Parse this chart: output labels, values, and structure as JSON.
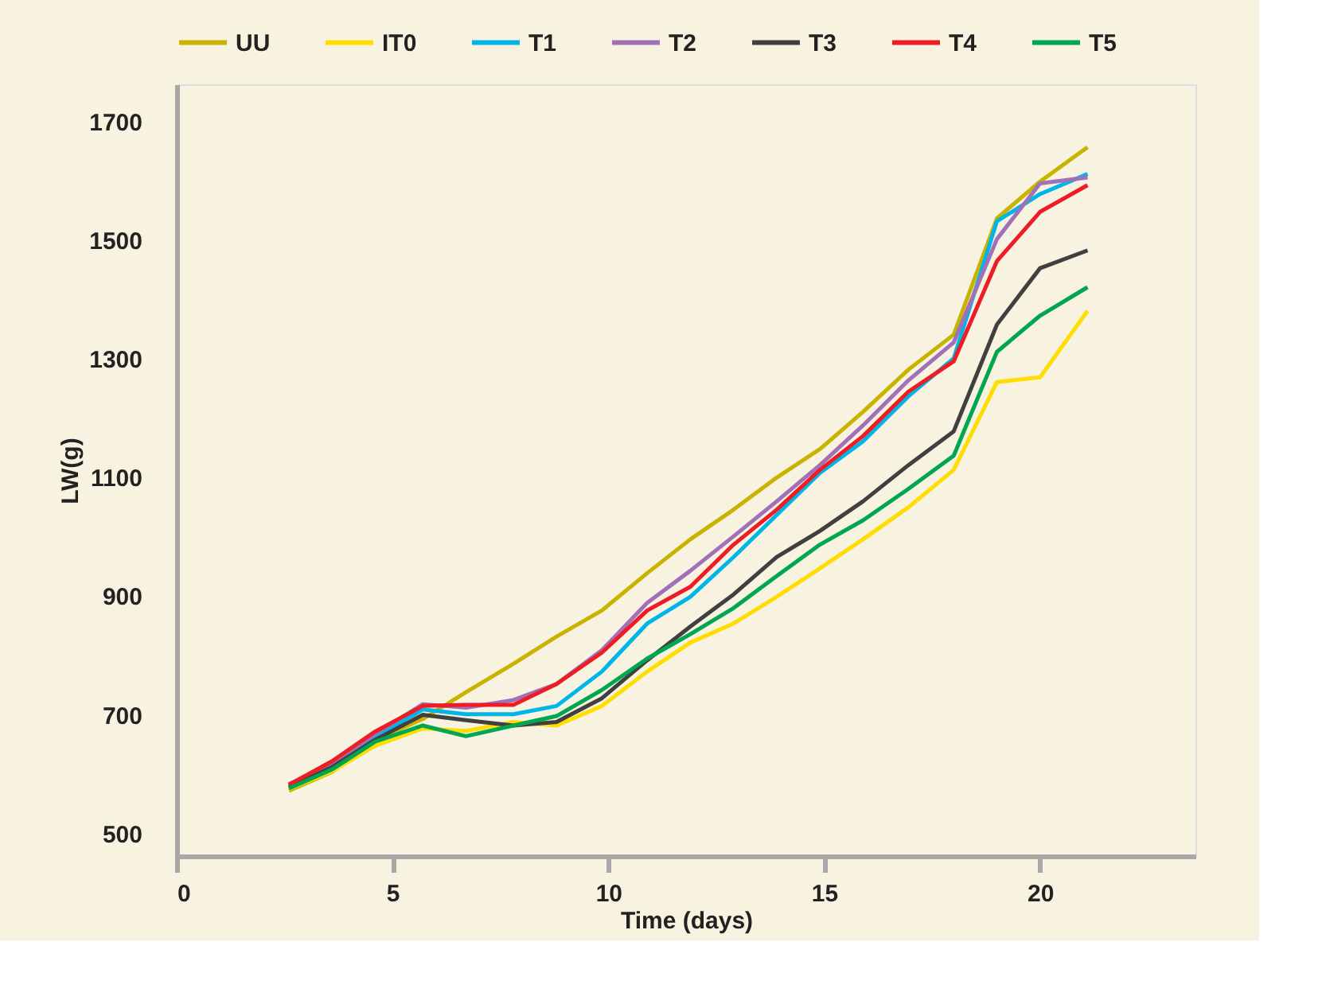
{
  "chart_data": {
    "type": "line",
    "xlabel": "Time (days)",
    "ylabel": "LW(g)",
    "x": [
      2.6,
      3.6,
      4.6,
      5.7,
      6.7,
      7.8,
      8.8,
      9.85,
      10.9,
      11.9,
      12.9,
      13.9,
      14.9,
      15.9,
      16.95,
      18.0,
      19.0,
      20.0,
      21.1
    ],
    "series": [
      {
        "name": "UU",
        "color": "#c8b400",
        "values": [
          572,
          604,
          658,
          693,
          738,
          786,
          832,
          876,
          939,
          996,
          1046,
          1100,
          1148,
          1211,
          1282,
          1341,
          1537,
          1599,
          1657
        ]
      },
      {
        "name": "IT0",
        "color": "#ffdd00",
        "values": [
          575,
          605,
          648,
          677,
          673,
          688,
          682,
          715,
          773,
          822,
          854,
          899,
          947,
          996,
          1050,
          1113,
          1261,
          1269,
          1381
        ]
      },
      {
        "name": "T1",
        "color": "#00b5e8",
        "values": [
          580,
          612,
          662,
          709,
          701,
          701,
          715,
          773,
          854,
          899,
          966,
          1037,
          1108,
          1161,
          1237,
          1301,
          1532,
          1578,
          1612
        ]
      },
      {
        "name": "T2",
        "color": "#a070b8",
        "values": [
          583,
          618,
          668,
          718,
          712,
          725,
          752,
          809,
          889,
          943,
          1001,
          1060,
          1121,
          1188,
          1264,
          1328,
          1502,
          1596,
          1606
        ]
      },
      {
        "name": "T3",
        "color": "#404040",
        "values": [
          578,
          612,
          658,
          700,
          691,
          682,
          688,
          728,
          792,
          849,
          903,
          966,
          1010,
          1060,
          1121,
          1178,
          1358,
          1453,
          1483
        ]
      },
      {
        "name": "T4",
        "color": "#ee1c25",
        "values": [
          582,
          622,
          672,
          715,
          717,
          717,
          752,
          805,
          876,
          916,
          987,
          1046,
          1113,
          1170,
          1245,
          1296,
          1465,
          1548,
          1593
        ]
      },
      {
        "name": "T5",
        "color": "#00a650",
        "values": [
          576,
          608,
          655,
          682,
          664,
          682,
          698,
          742,
          795,
          836,
          880,
          934,
          987,
          1028,
          1081,
          1137,
          1312,
          1373,
          1421
        ]
      }
    ],
    "xlim": [
      0,
      23.6
    ],
    "xticks": [
      0,
      5,
      10,
      15,
      20
    ],
    "ylim": [
      462,
      1763
    ],
    "yticks": [
      500,
      700,
      900,
      1100,
      1300,
      1500,
      1700
    ],
    "grid": false,
    "legend": "top",
    "marker": "none",
    "line_style": "solid"
  }
}
